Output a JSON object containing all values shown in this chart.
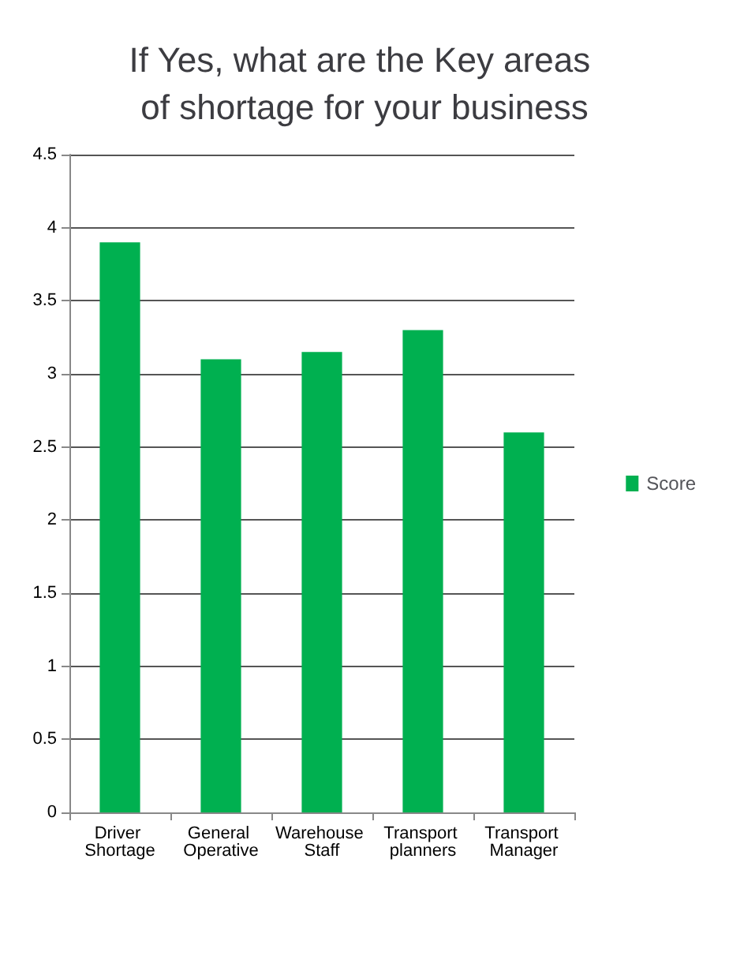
{
  "chart_data": {
    "type": "bar",
    "title": "If Yes, what are the Key areas of shortage for your business",
    "categories": [
      "Driver Shortage",
      "General Operative",
      "Warehouse Staff",
      "Transport planners",
      "Transport Manager"
    ],
    "series": [
      {
        "name": "Score",
        "color": "#00b050",
        "values": [
          3.9,
          3.1,
          3.15,
          3.3,
          2.6
        ]
      }
    ],
    "ylim": [
      0,
      4.5
    ],
    "yticks": [
      0,
      0.5,
      1,
      1.5,
      2,
      2.5,
      3,
      3.5,
      4,
      4.5
    ],
    "grid": "y",
    "legend": "right"
  }
}
